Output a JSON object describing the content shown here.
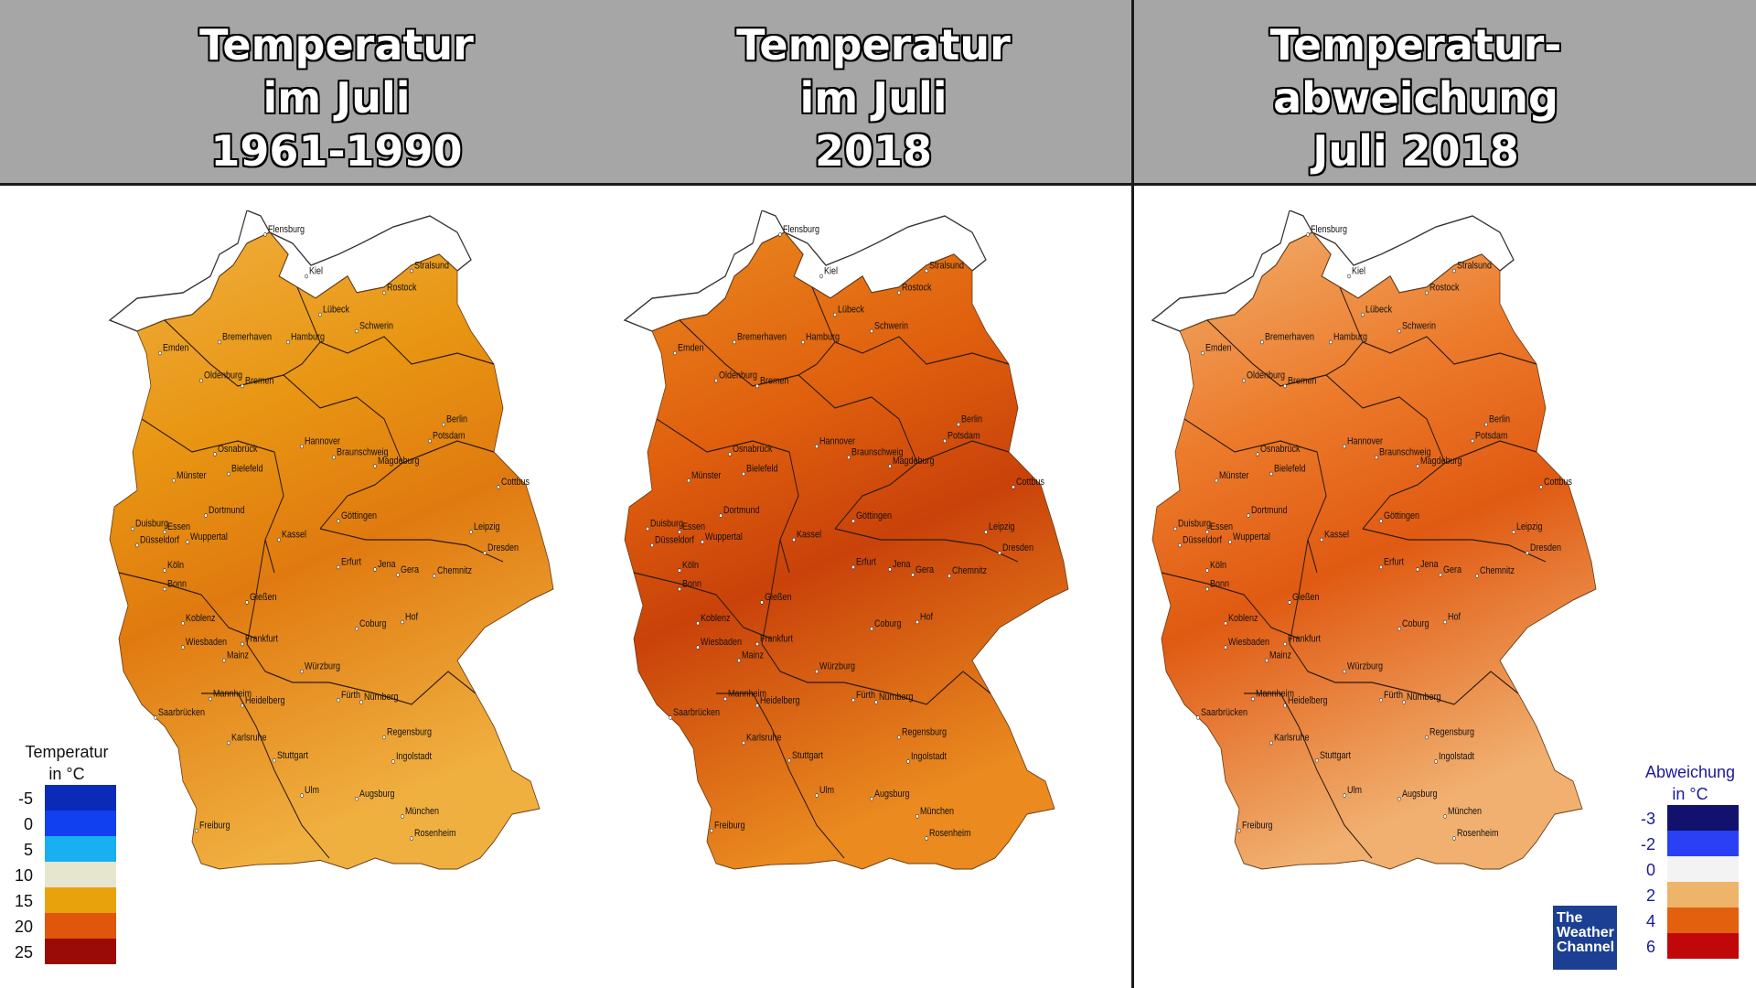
{
  "panels": [
    {
      "title_lines": [
        "Temperatur",
        "im Juli",
        "1961-1990"
      ],
      "fill": "#e89512",
      "fill_hot": "#e07a10",
      "fill_cool": "#f0b040"
    },
    {
      "title_lines": [
        "Temperatur",
        "im Juli",
        "2018"
      ],
      "fill": "#e0600e",
      "fill_hot": "#c9420a",
      "fill_cool": "#ea8a1f"
    },
    {
      "title_lines": [
        "Temperatur-",
        "abweichung",
        "Juli 2018"
      ],
      "fill": "#ec7a2a",
      "fill_hot": "#e05a12",
      "fill_cool": "#f1b070"
    }
  ],
  "cities": [
    "Flensburg",
    "Kiel",
    "Stralsund",
    "Rostock",
    "Lübeck",
    "Schwerin",
    "Emden",
    "Bremerhaven",
    "Hamburg",
    "Oldenburg",
    "Bremen",
    "Berlin",
    "Potsdam",
    "Hannover",
    "Osnabrück",
    "Braunschweig",
    "Magdeburg",
    "Münster",
    "Bielefeld",
    "Cottbus",
    "Dortmund",
    "Göttingen",
    "Duisburg",
    "Essen",
    "Leipzig",
    "Düsseldorf",
    "Wuppertal",
    "Kassel",
    "Dresden",
    "Köln",
    "Erfurt",
    "Jena",
    "Gera",
    "Chemnitz",
    "Bonn",
    "Gießen",
    "Koblenz",
    "Coburg",
    "Hof",
    "Wiesbaden",
    "Frankfurt",
    "Mainz",
    "Würzburg",
    "Mannheim",
    "Fürth",
    "Nürnberg",
    "Saarbrücken",
    "Heidelberg",
    "Regensburg",
    "Karlsruhe",
    "Stuttgart",
    "Ingolstadt",
    "Ulm",
    "Augsburg",
    "München",
    "Freiburg",
    "Rosenheim"
  ],
  "legend_left": {
    "title_lines": [
      "Temperatur",
      "in °C"
    ],
    "items": [
      {
        "label": "-5",
        "color": "#0a2bb8"
      },
      {
        "label": "0",
        "color": "#1040f0"
      },
      {
        "label": "5",
        "color": "#18b0f0"
      },
      {
        "label": "10",
        "color": "#e6e6cf"
      },
      {
        "label": "15",
        "color": "#e8a30c"
      },
      {
        "label": "20",
        "color": "#e0560c"
      },
      {
        "label": "25",
        "color": "#9a0a06"
      }
    ]
  },
  "legend_right": {
    "title_lines": [
      "Abweichung",
      "in °C"
    ],
    "items": [
      {
        "label": "-3",
        "color": "#12126e"
      },
      {
        "label": "-2",
        "color": "#2a40f5"
      },
      {
        "label": "0",
        "color": "#f3f3f3"
      },
      {
        "label": "2",
        "color": "#eeb46a"
      },
      {
        "label": "4",
        "color": "#e2600e"
      },
      {
        "label": "6",
        "color": "#c00808"
      }
    ]
  },
  "logo": {
    "lines": [
      "The",
      "Weather",
      "Channel"
    ]
  }
}
